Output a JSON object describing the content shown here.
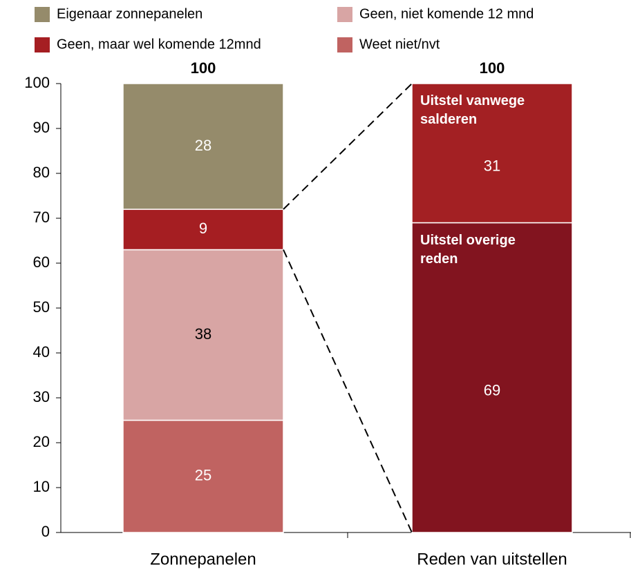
{
  "chart_data": {
    "type": "stacked-bar",
    "categories": [
      "Zonnepanelen",
      "Reden van uitstellen"
    ],
    "totals": [
      100,
      100
    ],
    "series": [
      {
        "name": "Eigenaar zonnepanelen",
        "color": "#958b6b",
        "label_color": "#ffffff",
        "values": [
          28,
          null
        ],
        "in_legend": true
      },
      {
        "name": "Geen, maar wel komende 12mnd",
        "color": "#a51e22",
        "label_color": "#ffffff",
        "values": [
          9,
          null
        ],
        "in_legend": true
      },
      {
        "name": "Geen, niet komende 12 mnd",
        "color": "#d8a5a4",
        "label_color": "#000000",
        "values": [
          38,
          null
        ],
        "in_legend": true
      },
      {
        "name": "Weet niet/nvt",
        "color": "#c06361",
        "label_color": "#ffffff",
        "values": [
          25,
          null
        ],
        "in_legend": true
      },
      {
        "name": "Uitstel vanwege salderen",
        "color": "#a32023",
        "label_color": "#ffffff",
        "values": [
          null,
          31
        ],
        "in_legend": false
      },
      {
        "name": "Uitstel overige reden",
        "color": "#82141f",
        "label_color": "#ffffff",
        "values": [
          null,
          69
        ],
        "in_legend": false
      }
    ],
    "ylim": [
      0,
      100
    ],
    "yticks": [
      0,
      10,
      20,
      30,
      40,
      50,
      60,
      70,
      80,
      90,
      100
    ]
  }
}
